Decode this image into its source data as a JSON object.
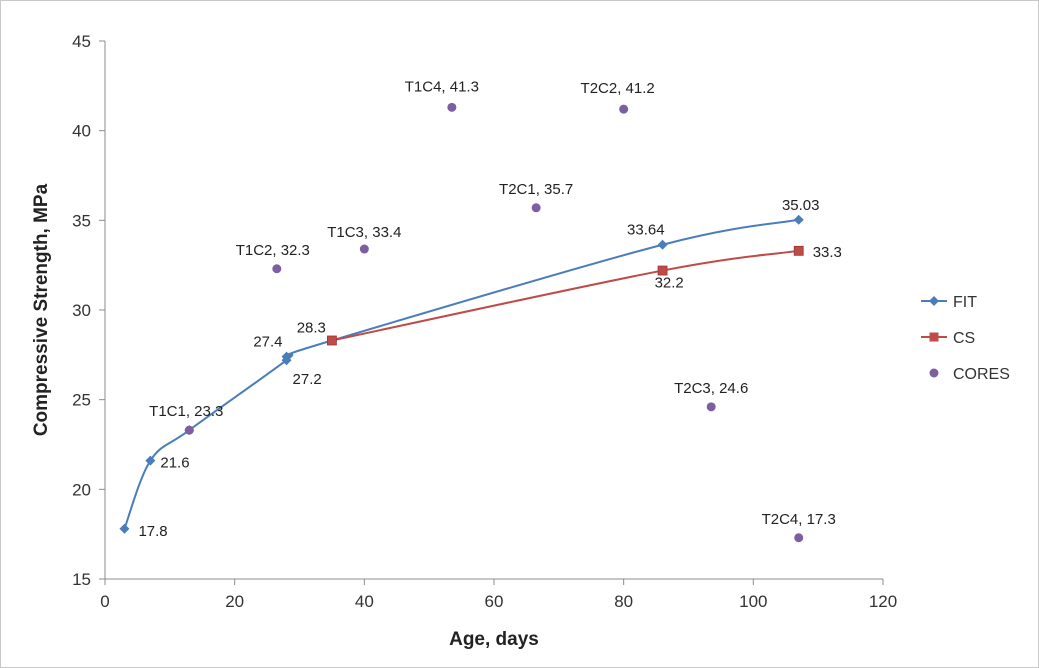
{
  "chart_data": {
    "type": "line",
    "xlabel": "Age, days",
    "ylabel": "Compressive Strength, MPa",
    "xlim": [
      0,
      120
    ],
    "ylim": [
      15,
      45
    ],
    "xticks": [
      "0",
      "20",
      "40",
      "60",
      "80",
      "100",
      "120"
    ],
    "yticks": [
      "15",
      "20",
      "25",
      "30",
      "35",
      "40",
      "45"
    ],
    "grid": false,
    "legend_position": "right",
    "series": [
      {
        "name": "FIT",
        "kind": "line",
        "color": "#4a7ebb",
        "marker": "diamond",
        "points": [
          {
            "x": 3,
            "y": 17.8,
            "label": "17.8"
          },
          {
            "x": 7,
            "y": 21.6,
            "label": "21.6"
          },
          {
            "x": 13,
            "y": 23.3,
            "label": ""
          },
          {
            "x": 28,
            "y": 27.2,
            "label": "27.2"
          },
          {
            "x": 28,
            "y": 27.4,
            "label": "27.4"
          },
          {
            "x": 35,
            "y": 28.3,
            "label": "28.3"
          },
          {
            "x": 86,
            "y": 33.64,
            "label": "33.64"
          },
          {
            "x": 107,
            "y": 35.03,
            "label": "35.03"
          }
        ]
      },
      {
        "name": "CS",
        "kind": "line",
        "color": "#be4b48",
        "marker": "square",
        "points": [
          {
            "x": 35,
            "y": 28.3,
            "label": ""
          },
          {
            "x": 86,
            "y": 32.2,
            "label": "32.2"
          },
          {
            "x": 107,
            "y": 33.3,
            "label": "33.3"
          }
        ]
      },
      {
        "name": "CORES",
        "kind": "scatter",
        "color": "#7d5fa0",
        "marker": "circle",
        "points": [
          {
            "x": 13,
            "y": 23.3,
            "label": "T1C1, 23.3"
          },
          {
            "x": 26.5,
            "y": 32.3,
            "label": "T1C2, 32.3"
          },
          {
            "x": 40,
            "y": 33.4,
            "label": "T1C3, 33.4"
          },
          {
            "x": 53.5,
            "y": 41.3,
            "label": "T1C4, 41.3"
          },
          {
            "x": 66.5,
            "y": 35.7,
            "label": "T2C1, 35.7"
          },
          {
            "x": 80,
            "y": 41.2,
            "label": "T2C2, 41.2"
          },
          {
            "x": 93.5,
            "y": 24.6,
            "label": "T2C3, 24.6"
          },
          {
            "x": 107,
            "y": 17.3,
            "label": "T2C4, 17.3"
          }
        ]
      }
    ]
  }
}
